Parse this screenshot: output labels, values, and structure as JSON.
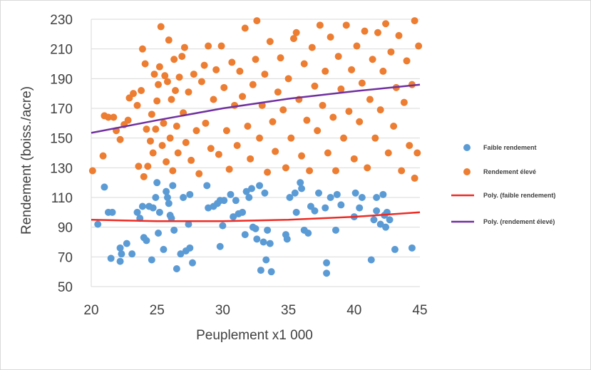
{
  "chart_data": {
    "type": "scatter",
    "xlabel": "Peuplement x1 000",
    "ylabel": "Rendement (boiss./acre)",
    "xlim": [
      20,
      45
    ],
    "ylim": [
      50,
      230
    ],
    "xticks": [
      "20",
      "25",
      "30",
      "35",
      "40",
      "45"
    ],
    "yticks": [
      "50",
      "70",
      "90",
      "110",
      "130",
      "150",
      "170",
      "190",
      "210",
      "230"
    ],
    "grid": "horizontal",
    "legend_position": "right",
    "series": [
      {
        "name": "Faible rendement",
        "kind": "points",
        "color": "#5b9bd5",
        "points": [
          [
            20.5,
            92
          ],
          [
            21,
            117
          ],
          [
            21.3,
            100
          ],
          [
            21.6,
            100
          ],
          [
            21.5,
            69
          ],
          [
            22.2,
            76
          ],
          [
            22.3,
            72
          ],
          [
            22.2,
            67
          ],
          [
            22.7,
            79
          ],
          [
            23.1,
            72
          ],
          [
            23.5,
            100
          ],
          [
            23.7,
            96
          ],
          [
            23.9,
            104
          ],
          [
            24,
            83
          ],
          [
            24.2,
            81
          ],
          [
            24.4,
            104
          ],
          [
            24.6,
            68
          ],
          [
            24.7,
            103
          ],
          [
            24.9,
            110
          ],
          [
            25,
            120
          ],
          [
            25.1,
            86
          ],
          [
            25.2,
            100
          ],
          [
            25.5,
            75
          ],
          [
            25.7,
            114
          ],
          [
            25.8,
            110
          ],
          [
            25.9,
            106
          ],
          [
            26,
            98
          ],
          [
            26.1,
            96
          ],
          [
            26.2,
            118
          ],
          [
            26.3,
            88
          ],
          [
            26.5,
            62
          ],
          [
            26.8,
            72
          ],
          [
            27,
            110
          ],
          [
            27.2,
            74
          ],
          [
            27.5,
            76
          ],
          [
            27.5,
            112
          ],
          [
            27.7,
            66
          ],
          [
            27.4,
            92
          ],
          [
            28.8,
            118
          ],
          [
            28.9,
            103
          ],
          [
            29.3,
            104
          ],
          [
            29.6,
            106
          ],
          [
            29.8,
            108
          ],
          [
            30,
            91
          ],
          [
            30.1,
            108
          ],
          [
            29.8,
            77
          ],
          [
            30.6,
            112
          ],
          [
            30.8,
            97
          ],
          [
            31,
            108
          ],
          [
            31.2,
            99
          ],
          [
            31.5,
            100
          ],
          [
            31.7,
            85
          ],
          [
            31.8,
            114
          ],
          [
            32,
            110
          ],
          [
            32.2,
            116
          ],
          [
            32.3,
            90
          ],
          [
            32.5,
            89
          ],
          [
            32.6,
            82
          ],
          [
            32.8,
            118
          ],
          [
            32.9,
            61
          ],
          [
            33.1,
            80
          ],
          [
            33.2,
            113
          ],
          [
            33.3,
            68
          ],
          [
            33.4,
            88
          ],
          [
            33.7,
            60
          ],
          [
            33.6,
            79
          ],
          [
            34.8,
            85
          ],
          [
            34.9,
            82
          ],
          [
            35.1,
            110
          ],
          [
            35.6,
            100
          ],
          [
            35.5,
            113
          ],
          [
            35.9,
            120
          ],
          [
            36,
            116
          ],
          [
            36.2,
            88
          ],
          [
            36.5,
            86
          ],
          [
            36.7,
            104
          ],
          [
            37,
            101
          ],
          [
            37.3,
            113
          ],
          [
            37.9,
            66
          ],
          [
            37.9,
            59
          ],
          [
            37.8,
            103
          ],
          [
            38.2,
            110
          ],
          [
            38.6,
            88
          ],
          [
            39,
            105
          ],
          [
            38.7,
            112
          ],
          [
            40,
            97
          ],
          [
            40.1,
            113
          ],
          [
            40.4,
            103
          ],
          [
            40.6,
            110
          ],
          [
            41.3,
            68
          ],
          [
            41.5,
            95
          ],
          [
            41.7,
            101
          ],
          [
            41.7,
            110
          ],
          [
            42,
            92
          ],
          [
            42.2,
            112
          ],
          [
            42.3,
            98
          ],
          [
            42.4,
            90
          ],
          [
            42.5,
            100
          ],
          [
            42.7,
            95
          ],
          [
            43.1,
            75
          ],
          [
            44.4,
            76
          ]
        ]
      },
      {
        "name": "Rendement élevé",
        "kind": "points",
        "color": "#ed7d31",
        "points": [
          [
            20.1,
            128
          ],
          [
            20.9,
            138
          ],
          [
            21,
            165
          ],
          [
            21.3,
            164
          ],
          [
            21.7,
            164
          ],
          [
            21.9,
            155
          ],
          [
            22.2,
            149
          ],
          [
            22.5,
            159
          ],
          [
            22.8,
            162
          ],
          [
            22.9,
            177
          ],
          [
            23.2,
            180
          ],
          [
            23.5,
            172
          ],
          [
            23.6,
            131
          ],
          [
            23.8,
            182
          ],
          [
            23.9,
            210
          ],
          [
            24,
            124
          ],
          [
            24.1,
            200
          ],
          [
            24.2,
            156
          ],
          [
            24.3,
            131
          ],
          [
            24.5,
            148
          ],
          [
            24.6,
            166
          ],
          [
            24.7,
            140
          ],
          [
            24.8,
            193
          ],
          [
            24.9,
            156
          ],
          [
            25,
            175
          ],
          [
            25.1,
            186
          ],
          [
            25.2,
            198
          ],
          [
            25.3,
            225
          ],
          [
            25.4,
            145
          ],
          [
            25.5,
            160
          ],
          [
            25.6,
            192
          ],
          [
            25.7,
            134
          ],
          [
            25.8,
            188
          ],
          [
            25.9,
            216
          ],
          [
            26,
            150
          ],
          [
            26.1,
            176
          ],
          [
            26.2,
            128
          ],
          [
            26.3,
            203
          ],
          [
            26.4,
            182
          ],
          [
            26.5,
            158
          ],
          [
            26.6,
            140
          ],
          [
            26.7,
            191
          ],
          [
            26.9,
            205
          ],
          [
            27,
            167
          ],
          [
            27.1,
            211
          ],
          [
            27.2,
            147
          ],
          [
            27.4,
            181
          ],
          [
            27.6,
            135
          ],
          [
            27.8,
            193
          ],
          [
            28,
            155
          ],
          [
            28.2,
            126
          ],
          [
            28.4,
            188
          ],
          [
            28.6,
            199
          ],
          [
            28.7,
            160
          ],
          [
            28.9,
            212
          ],
          [
            29.1,
            143
          ],
          [
            29.3,
            176
          ],
          [
            29.5,
            196
          ],
          [
            29.7,
            139
          ],
          [
            29.9,
            212
          ],
          [
            30.1,
            184
          ],
          [
            30.3,
            155
          ],
          [
            30.5,
            129
          ],
          [
            30.7,
            201
          ],
          [
            30.9,
            172
          ],
          [
            31.1,
            145
          ],
          [
            31.3,
            195
          ],
          [
            31.5,
            178
          ],
          [
            31.7,
            224
          ],
          [
            31.9,
            158
          ],
          [
            32.1,
            136
          ],
          [
            32.3,
            186
          ],
          [
            32.5,
            203
          ],
          [
            32.6,
            229
          ],
          [
            32.8,
            150
          ],
          [
            33,
            172
          ],
          [
            33.2,
            193
          ],
          [
            33.4,
            127
          ],
          [
            33.6,
            215
          ],
          [
            33.8,
            161
          ],
          [
            34,
            141
          ],
          [
            34.2,
            181
          ],
          [
            34.4,
            204
          ],
          [
            34.6,
            169
          ],
          [
            34.8,
            130
          ],
          [
            35,
            190
          ],
          [
            35.2,
            150
          ],
          [
            35.4,
            217
          ],
          [
            35.6,
            221
          ],
          [
            35.8,
            176
          ],
          [
            36,
            138
          ],
          [
            36.2,
            200
          ],
          [
            36.4,
            162
          ],
          [
            36.6,
            128
          ],
          [
            36.8,
            211
          ],
          [
            37,
            185
          ],
          [
            37.2,
            155
          ],
          [
            37.4,
            226
          ],
          [
            37.6,
            172
          ],
          [
            37.8,
            195
          ],
          [
            38,
            140
          ],
          [
            38.2,
            218
          ],
          [
            38.4,
            164
          ],
          [
            38.6,
            128
          ],
          [
            38.8,
            205
          ],
          [
            39,
            183
          ],
          [
            39.2,
            150
          ],
          [
            39.4,
            226
          ],
          [
            39.6,
            168
          ],
          [
            39.8,
            196
          ],
          [
            40,
            136
          ],
          [
            40.2,
            212
          ],
          [
            40.4,
            161
          ],
          [
            40.6,
            187
          ],
          [
            40.8,
            222
          ],
          [
            41,
            130
          ],
          [
            41.2,
            176
          ],
          [
            41.4,
            203
          ],
          [
            41.6,
            150
          ],
          [
            41.8,
            221
          ],
          [
            42,
            169
          ],
          [
            42.2,
            195
          ],
          [
            42.4,
            227
          ],
          [
            42.6,
            140
          ],
          [
            42.8,
            208
          ],
          [
            43,
            158
          ],
          [
            43.2,
            184
          ],
          [
            43.4,
            219
          ],
          [
            43.6,
            128
          ],
          [
            43.8,
            174
          ],
          [
            44,
            202
          ],
          [
            44.2,
            145
          ],
          [
            44.4,
            186
          ],
          [
            44.6,
            229
          ],
          [
            44.8,
            140
          ],
          [
            44.9,
            212
          ],
          [
            44.6,
            123
          ]
        ]
      },
      {
        "name": "Poly. (faible rendement)",
        "kind": "trendline",
        "color": "#ee2b24",
        "points": [
          [
            20,
            95
          ],
          [
            25,
            94
          ],
          [
            30,
            94
          ],
          [
            35,
            95
          ],
          [
            40,
            97
          ],
          [
            45,
            100
          ]
        ]
      },
      {
        "name": "Poly. (rendement élevé)",
        "kind": "trendline",
        "color": "#7030a0",
        "points": [
          [
            20,
            153.5
          ],
          [
            25,
            162
          ],
          [
            30,
            170
          ],
          [
            35,
            176.5
          ],
          [
            40,
            181.5
          ],
          [
            45,
            186
          ]
        ]
      }
    ]
  }
}
